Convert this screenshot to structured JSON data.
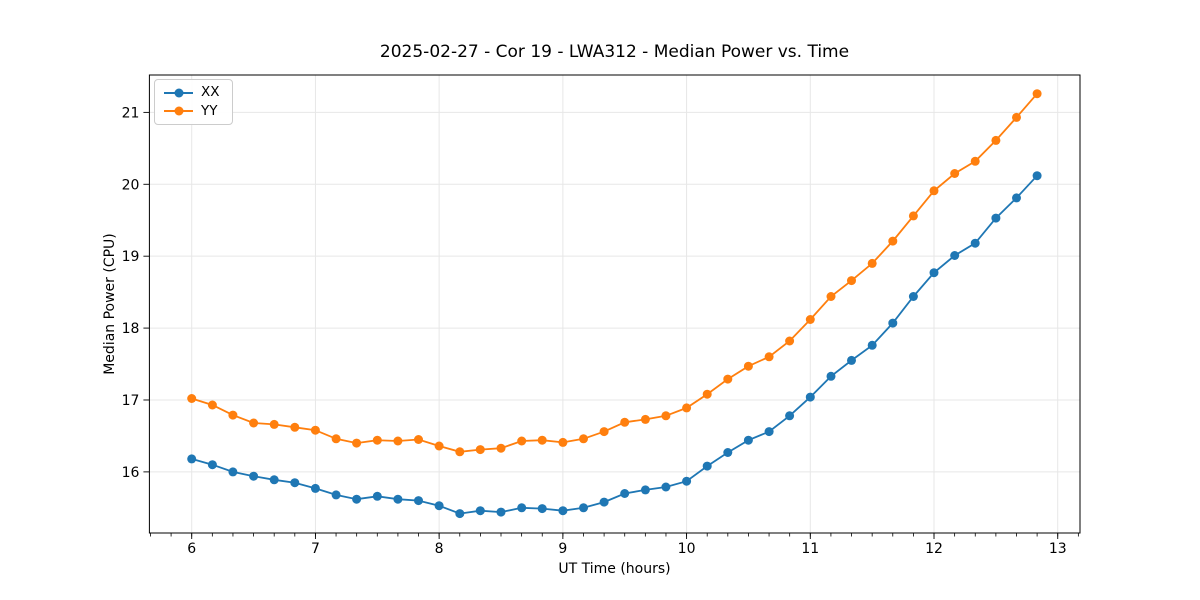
{
  "chart_data": {
    "type": "line",
    "title": "2025-02-27 - Cor 19 - LWA312 - Median Power vs. Time",
    "xlabel": "UT Time (hours)",
    "ylabel": "Median Power (CPU)",
    "xlim": [
      5.658,
      13.18
    ],
    "ylim": [
      15.15,
      21.52
    ],
    "x_ticks": [
      6,
      7,
      8,
      9,
      10,
      11,
      12,
      13
    ],
    "y_ticks": [
      16,
      17,
      18,
      19,
      20,
      21
    ],
    "x_minor_step": 0.166667,
    "grid": true,
    "grid_color": "#e7e7e7",
    "legend_position": "upper left",
    "marker": "circle",
    "x": [
      6.0,
      6.167,
      6.333,
      6.5,
      6.667,
      6.833,
      7.0,
      7.167,
      7.333,
      7.5,
      7.667,
      7.833,
      8.0,
      8.167,
      8.333,
      8.5,
      8.667,
      8.833,
      9.0,
      9.167,
      9.333,
      9.5,
      9.667,
      9.833,
      10.0,
      10.167,
      10.333,
      10.5,
      10.667,
      10.833,
      11.0,
      11.167,
      11.333,
      11.5,
      11.667,
      11.833,
      12.0,
      12.167,
      12.333,
      12.5,
      12.667,
      12.833
    ],
    "series": [
      {
        "name": "XX",
        "color": "#1f77b4",
        "values": [
          16.18,
          16.1,
          16.0,
          15.94,
          15.89,
          15.85,
          15.77,
          15.68,
          15.62,
          15.66,
          15.62,
          15.6,
          15.53,
          15.42,
          15.46,
          15.44,
          15.5,
          15.49,
          15.46,
          15.5,
          15.58,
          15.7,
          15.75,
          15.79,
          15.87,
          16.08,
          16.27,
          16.44,
          16.56,
          16.78,
          17.04,
          17.33,
          17.55,
          17.76,
          18.07,
          18.44,
          18.77,
          19.01,
          19.18,
          19.53,
          19.81,
          20.12
        ]
      },
      {
        "name": "YY",
        "color": "#ff7f0e",
        "values": [
          17.02,
          16.93,
          16.79,
          16.68,
          16.66,
          16.62,
          16.58,
          16.46,
          16.4,
          16.44,
          16.43,
          16.45,
          16.36,
          16.28,
          16.31,
          16.33,
          16.43,
          16.44,
          16.41,
          16.46,
          16.56,
          16.69,
          16.73,
          16.78,
          16.89,
          17.08,
          17.29,
          17.47,
          17.6,
          17.82,
          18.12,
          18.44,
          18.66,
          18.9,
          19.21,
          19.56,
          19.91,
          20.15,
          20.32,
          20.61,
          20.93,
          21.26
        ]
      }
    ]
  }
}
